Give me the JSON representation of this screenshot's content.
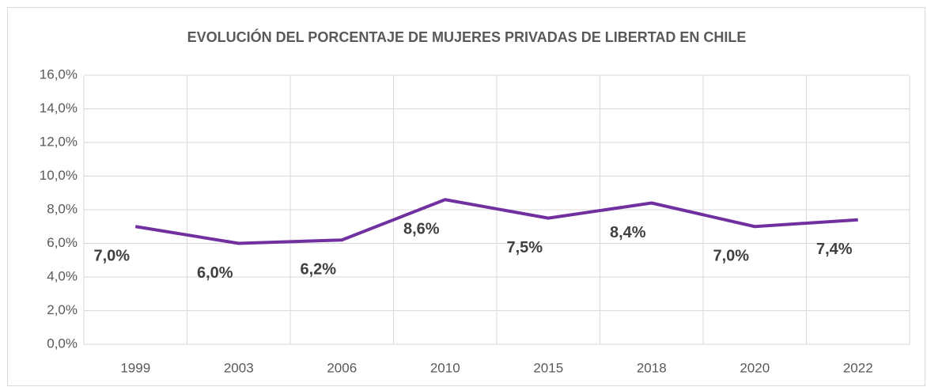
{
  "chart_data": {
    "type": "line",
    "title": "EVOLUCIÓN DEL PORCENTAJE DE MUJERES PRIVADAS DE LIBERTAD EN CHILE",
    "categories": [
      "1999",
      "2003",
      "2006",
      "2010",
      "2015",
      "2018",
      "2020",
      "2022"
    ],
    "series": [
      {
        "color": "#7030a0",
        "values": [
          7.0,
          6.0,
          6.2,
          8.6,
          7.5,
          8.4,
          7.0,
          7.4
        ],
        "value_labels": [
          "7,0%",
          "6,0%",
          "6,2%",
          "8,6%",
          "7,5%",
          "8,4%",
          "7,0%",
          "7,4%"
        ]
      }
    ],
    "ylim": [
      0,
      16
    ],
    "yticks": [
      {
        "value": 0,
        "label": "0,0%"
      },
      {
        "value": 2,
        "label": "2,0%"
      },
      {
        "value": 4,
        "label": "4,0%"
      },
      {
        "value": 6,
        "label": "6,0%"
      },
      {
        "value": 8,
        "label": "8,0%"
      },
      {
        "value": 10,
        "label": "10,0%"
      },
      {
        "value": 12,
        "label": "12,0%"
      },
      {
        "value": 14,
        "label": "14,0%"
      },
      {
        "value": 16,
        "label": "16,0%"
      }
    ],
    "grid": true
  }
}
